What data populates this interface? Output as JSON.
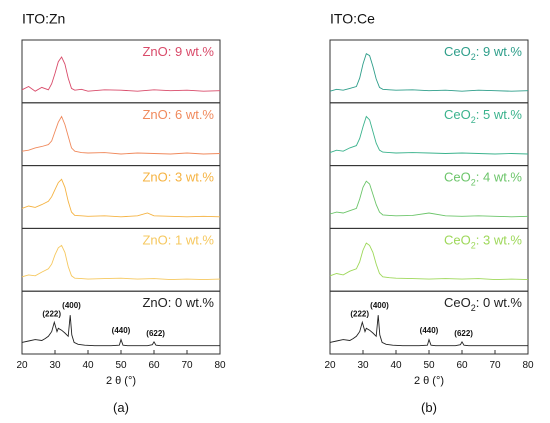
{
  "chart_data": [
    {
      "type": "line",
      "panel_title": "ITO:Zn",
      "panel_caption": "(a)",
      "xlabel": "2 θ (°)",
      "xlim": [
        20,
        80
      ],
      "xticks": [
        20,
        30,
        40,
        50,
        60,
        70,
        80
      ],
      "series": [
        {
          "name": "ZnO: 9 wt.%",
          "color": "#d94b6a",
          "label_base": "ZnO",
          "label_sub": "",
          "label_tail": ": 9 wt.%",
          "x": [
            20,
            22,
            24,
            26,
            28,
            29,
            30,
            31,
            32,
            33,
            34,
            35,
            36,
            38,
            40,
            45,
            50,
            55,
            60,
            65,
            70,
            75,
            80
          ],
          "y": [
            0.15,
            0.22,
            0.12,
            0.2,
            0.15,
            0.28,
            0.5,
            0.75,
            0.85,
            0.7,
            0.4,
            0.18,
            0.14,
            0.16,
            0.12,
            0.15,
            0.14,
            0.12,
            0.15,
            0.13,
            0.14,
            0.12,
            0.13
          ]
        },
        {
          "name": "ZnO: 6 wt.%",
          "color": "#f08a5d",
          "label_base": "ZnO",
          "label_sub": "",
          "label_tail": ": 6 wt.%",
          "x": [
            20,
            22,
            24,
            26,
            28,
            29,
            30,
            31,
            32,
            33,
            34,
            35,
            36,
            38,
            40,
            45,
            50,
            55,
            60,
            65,
            70,
            75,
            80
          ],
          "y": [
            0.18,
            0.2,
            0.25,
            0.28,
            0.32,
            0.4,
            0.6,
            0.8,
            0.92,
            0.75,
            0.5,
            0.25,
            0.18,
            0.15,
            0.14,
            0.15,
            0.12,
            0.14,
            0.13,
            0.12,
            0.14,
            0.12,
            0.13
          ]
        },
        {
          "name": "ZnO: 3 wt.%",
          "color": "#f5b342",
          "label_base": "ZnO",
          "label_sub": "",
          "label_tail": ": 3 wt.%",
          "x": [
            20,
            22,
            24,
            26,
            28,
            29,
            30,
            31,
            32,
            33,
            34,
            35,
            36,
            38,
            40,
            45,
            50,
            55,
            58,
            60,
            65,
            70,
            75,
            80
          ],
          "y": [
            0.3,
            0.35,
            0.32,
            0.38,
            0.45,
            0.55,
            0.7,
            0.85,
            0.92,
            0.75,
            0.45,
            0.22,
            0.15,
            0.14,
            0.13,
            0.14,
            0.12,
            0.14,
            0.2,
            0.14,
            0.13,
            0.12,
            0.13,
            0.12
          ]
        },
        {
          "name": "ZnO: 1 wt.%",
          "color": "#f6c85f",
          "label_base": "ZnO",
          "label_sub": "",
          "label_tail": ": 1 wt.%",
          "x": [
            20,
            22,
            24,
            26,
            28,
            29,
            30,
            31,
            32,
            33,
            34,
            35,
            36,
            38,
            40,
            45,
            50,
            55,
            60,
            65,
            70,
            75,
            80
          ],
          "y": [
            0.18,
            0.22,
            0.2,
            0.28,
            0.35,
            0.45,
            0.65,
            0.8,
            0.85,
            0.7,
            0.4,
            0.2,
            0.15,
            0.14,
            0.13,
            0.14,
            0.15,
            0.13,
            0.14,
            0.12,
            0.13,
            0.12,
            0.13
          ]
        },
        {
          "name": "ZnO: 0 wt.%",
          "color": "#222222",
          "label_base": "ZnO",
          "label_sub": "",
          "label_tail": ": 0 wt.%",
          "x": [
            20,
            22,
            24,
            26,
            27,
            28,
            29,
            29.8,
            30.6,
            31,
            32,
            33,
            34,
            34.6,
            35.1,
            35.8,
            37,
            39,
            42,
            45,
            47,
            49.5,
            50,
            50.6,
            52,
            55,
            58,
            59.5,
            60,
            60.6,
            62,
            65,
            70,
            75,
            80
          ],
          "y": [
            0.12,
            0.15,
            0.18,
            0.16,
            0.2,
            0.25,
            0.35,
            0.55,
            0.35,
            0.42,
            0.38,
            0.32,
            0.25,
            0.7,
            0.28,
            0.12,
            0.08,
            0.06,
            0.05,
            0.05,
            0.05,
            0.06,
            0.18,
            0.06,
            0.05,
            0.05,
            0.05,
            0.07,
            0.13,
            0.06,
            0.05,
            0.05,
            0.05,
            0.05,
            0.05
          ]
        }
      ],
      "annotations": [
        {
          "text": "(222)",
          "x": 29.0,
          "y": 0.67
        },
        {
          "text": "(400)",
          "x": 35.0,
          "y": 0.85
        },
        {
          "text": "(440)",
          "x": 50.0,
          "y": 0.32
        },
        {
          "text": "(622)",
          "x": 60.5,
          "y": 0.26
        }
      ]
    },
    {
      "type": "line",
      "panel_title": "ITO:Ce",
      "panel_caption": "(b)",
      "xlabel": "2 θ (°)",
      "xlim": [
        20,
        80
      ],
      "xticks": [
        20,
        30,
        40,
        50,
        60,
        70,
        80
      ],
      "series": [
        {
          "name": "CeO2: 9 wt.%",
          "color": "#2e9e8a",
          "label_base": "CeO",
          "label_sub": "2",
          "label_tail": ": 9 wt.%",
          "x": [
            20,
            22,
            24,
            26,
            28,
            29,
            30,
            31,
            32,
            33,
            34,
            35,
            36,
            38,
            40,
            45,
            50,
            55,
            60,
            65,
            70,
            75,
            80
          ],
          "y": [
            0.12,
            0.16,
            0.14,
            0.18,
            0.22,
            0.4,
            0.7,
            0.92,
            0.88,
            0.65,
            0.38,
            0.2,
            0.16,
            0.15,
            0.14,
            0.15,
            0.13,
            0.14,
            0.12,
            0.14,
            0.13,
            0.12,
            0.13
          ]
        },
        {
          "name": "CeO2: 5 wt.%",
          "color": "#3bb38d",
          "label_base": "CeO",
          "label_sub": "2",
          "label_tail": ": 5 wt.%",
          "x": [
            20,
            22,
            24,
            26,
            28,
            29,
            30,
            31,
            32,
            33,
            34,
            35,
            36,
            38,
            40,
            45,
            50,
            55,
            60,
            65,
            70,
            75,
            80
          ],
          "y": [
            0.15,
            0.2,
            0.18,
            0.25,
            0.3,
            0.45,
            0.7,
            0.92,
            0.85,
            0.6,
            0.35,
            0.2,
            0.16,
            0.15,
            0.14,
            0.15,
            0.14,
            0.13,
            0.14,
            0.13,
            0.12,
            0.13,
            0.12
          ]
        },
        {
          "name": "CeO2: 4 wt.%",
          "color": "#6cc56a",
          "label_base": "CeO",
          "label_sub": "2",
          "label_tail": ": 4 wt.%",
          "x": [
            20,
            22,
            24,
            26,
            28,
            29,
            30,
            31,
            32,
            33,
            34,
            35,
            36,
            38,
            40,
            45,
            50,
            55,
            60,
            65,
            70,
            75,
            80
          ],
          "y": [
            0.18,
            0.22,
            0.2,
            0.25,
            0.3,
            0.5,
            0.75,
            0.88,
            0.82,
            0.6,
            0.38,
            0.22,
            0.16,
            0.15,
            0.14,
            0.15,
            0.2,
            0.14,
            0.13,
            0.14,
            0.13,
            0.12,
            0.13
          ]
        },
        {
          "name": "CeO2: 3 wt.%",
          "color": "#9ed85a",
          "label_base": "CeO",
          "label_sub": "2",
          "label_tail": ": 3 wt.%",
          "x": [
            20,
            22,
            24,
            26,
            28,
            29,
            30,
            31,
            32,
            33,
            34,
            35,
            36,
            38,
            40,
            45,
            50,
            55,
            60,
            65,
            70,
            75,
            80
          ],
          "y": [
            0.2,
            0.25,
            0.22,
            0.3,
            0.35,
            0.5,
            0.75,
            0.9,
            0.85,
            0.7,
            0.45,
            0.25,
            0.18,
            0.16,
            0.15,
            0.14,
            0.13,
            0.14,
            0.13,
            0.14,
            0.12,
            0.13,
            0.12
          ]
        },
        {
          "name": "CeO2: 0 wt.%",
          "color": "#222222",
          "label_base": "CeO",
          "label_sub": "2",
          "label_tail": ": 0 wt.%",
          "x": [
            20,
            22,
            24,
            26,
            27,
            28,
            29,
            29.8,
            30.6,
            31,
            32,
            33,
            34,
            34.6,
            35.1,
            35.8,
            37,
            39,
            42,
            45,
            47,
            49.5,
            50,
            50.6,
            52,
            55,
            58,
            59.5,
            60,
            60.6,
            62,
            65,
            70,
            75,
            80
          ],
          "y": [
            0.12,
            0.15,
            0.18,
            0.16,
            0.2,
            0.25,
            0.35,
            0.55,
            0.35,
            0.42,
            0.38,
            0.32,
            0.25,
            0.7,
            0.28,
            0.12,
            0.08,
            0.06,
            0.05,
            0.05,
            0.05,
            0.06,
            0.18,
            0.06,
            0.05,
            0.05,
            0.05,
            0.07,
            0.13,
            0.06,
            0.05,
            0.05,
            0.05,
            0.05,
            0.05
          ]
        }
      ],
      "annotations": [
        {
          "text": "(222)",
          "x": 29.0,
          "y": 0.67
        },
        {
          "text": "(400)",
          "x": 35.0,
          "y": 0.85
        },
        {
          "text": "(440)",
          "x": 50.0,
          "y": 0.32
        },
        {
          "text": "(622)",
          "x": 60.5,
          "y": 0.26
        }
      ]
    }
  ]
}
